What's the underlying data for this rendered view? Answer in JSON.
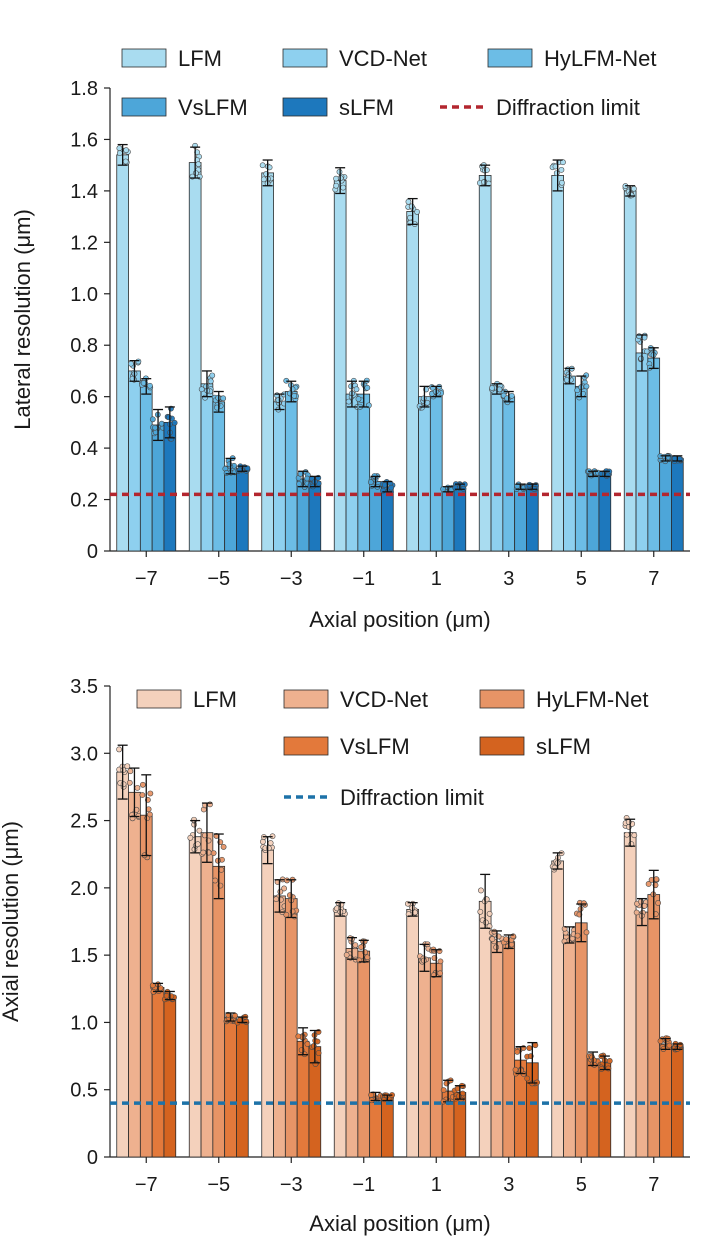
{
  "chart_data": [
    {
      "type": "bar",
      "title": "",
      "xlabel": "Axial position (μm)",
      "ylabel": "Lateral resolution (μm)",
      "ylim": [
        0,
        1.8
      ],
      "yticks": [
        "0",
        "0.2",
        "0.4",
        "0.6",
        "0.8",
        "1.0",
        "1.2",
        "1.4",
        "1.6",
        "1.8"
      ],
      "categories": [
        "−7",
        "−5",
        "−3",
        "−1",
        "1",
        "3",
        "5",
        "7"
      ],
      "legend_position": "top",
      "series": [
        {
          "name": "LFM",
          "color": "#a9dcf0",
          "values": [
            1.54,
            1.51,
            1.47,
            1.44,
            1.32,
            1.46,
            1.46,
            1.4
          ],
          "errors": [
            0.04,
            0.06,
            0.05,
            0.05,
            0.05,
            0.04,
            0.06,
            0.02
          ]
        },
        {
          "name": "VCD-Net",
          "color": "#8ed0ef",
          "values": [
            0.7,
            0.65,
            0.58,
            0.61,
            0.6,
            0.63,
            0.68,
            0.77
          ],
          "errors": [
            0.04,
            0.05,
            0.03,
            0.05,
            0.04,
            0.02,
            0.03,
            0.07
          ]
        },
        {
          "name": "HyLFM-Net",
          "color": "#6cbde6",
          "values": [
            0.64,
            0.58,
            0.62,
            0.61,
            0.62,
            0.6,
            0.64,
            0.75
          ],
          "errors": [
            0.03,
            0.04,
            0.04,
            0.05,
            0.02,
            0.02,
            0.04,
            0.04
          ]
        },
        {
          "name": "VsLFM",
          "color": "#4da6d9",
          "values": [
            0.49,
            0.33,
            0.28,
            0.27,
            0.24,
            0.25,
            0.3,
            0.36
          ],
          "errors": [
            0.06,
            0.03,
            0.03,
            0.02,
            0.01,
            0.01,
            0.01,
            0.01
          ]
        },
        {
          "name": "sLFM",
          "color": "#1d78bd",
          "values": [
            0.5,
            0.32,
            0.27,
            0.25,
            0.25,
            0.25,
            0.3,
            0.36
          ],
          "errors": [
            0.06,
            0.01,
            0.02,
            0.02,
            0.01,
            0.01,
            0.01,
            0.01
          ]
        }
      ],
      "reference_line": {
        "name": "Diffraction limit",
        "value": 0.22,
        "color": "#b3262f",
        "style": "dashed"
      }
    },
    {
      "type": "bar",
      "title": "",
      "xlabel": "Axial position (μm)",
      "ylabel": "Axial resolution (μm)",
      "ylim": [
        0,
        3.5
      ],
      "yticks": [
        "0",
        "0.5",
        "1.0",
        "1.5",
        "2.0",
        "2.5",
        "3.0",
        "3.5"
      ],
      "categories": [
        "−7",
        "−5",
        "−3",
        "−1",
        "1",
        "3",
        "5",
        "7"
      ],
      "legend_position": "top",
      "series": [
        {
          "name": "LFM",
          "color": "#f4d1bc",
          "values": [
            2.86,
            2.38,
            2.28,
            1.84,
            1.84,
            1.9,
            2.2,
            2.41
          ],
          "errors": [
            0.2,
            0.12,
            0.1,
            0.05,
            0.05,
            0.2,
            0.06,
            0.1
          ]
        },
        {
          "name": "VCD-Net",
          "color": "#eeb18f",
          "values": [
            2.71,
            2.41,
            1.94,
            1.55,
            1.48,
            1.6,
            1.65,
            1.82
          ],
          "errors": [
            0.18,
            0.22,
            0.12,
            0.08,
            0.1,
            0.08,
            0.06,
            0.1
          ]
        },
        {
          "name": "HyLFM-Net",
          "color": "#e79466",
          "values": [
            2.54,
            2.16,
            1.92,
            1.53,
            1.44,
            1.6,
            1.74,
            1.95
          ],
          "errors": [
            0.3,
            0.24,
            0.14,
            0.08,
            0.1,
            0.05,
            0.14,
            0.18
          ]
        },
        {
          "name": "VsLFM",
          "color": "#e3793b",
          "values": [
            1.26,
            1.04,
            0.86,
            0.45,
            0.49,
            0.72,
            0.73,
            0.84
          ],
          "errors": [
            0.03,
            0.03,
            0.1,
            0.03,
            0.08,
            0.1,
            0.05,
            0.04
          ]
        },
        {
          "name": "sLFM",
          "color": "#d4631f",
          "values": [
            1.2,
            1.02,
            0.82,
            0.44,
            0.48,
            0.7,
            0.7,
            0.82
          ],
          "errors": [
            0.03,
            0.02,
            0.12,
            0.02,
            0.05,
            0.15,
            0.05,
            0.02
          ]
        }
      ],
      "reference_line": {
        "name": "Diffraction limit",
        "value": 0.4,
        "color": "#1d72a8",
        "style": "dashed"
      }
    }
  ]
}
